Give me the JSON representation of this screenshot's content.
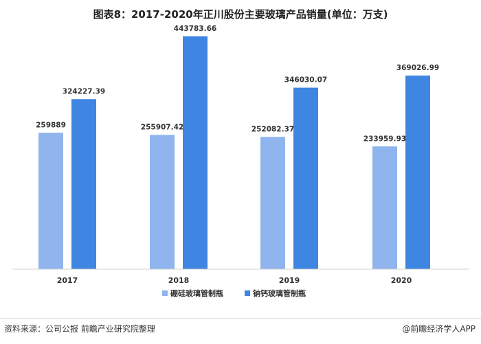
{
  "chart_data": {
    "type": "bar",
    "title": "图表8：2017-2020年正川股份主要玻璃产品销量(单位：万支)",
    "categories": [
      "2017",
      "2018",
      "2019",
      "2020"
    ],
    "series": [
      {
        "name": "硼硅玻璃管制瓶",
        "values": [
          259889,
          255907.42,
          252082.37,
          233959.93
        ],
        "labels": [
          "259889",
          "255907.42",
          "252082.37",
          "233959.93"
        ],
        "color": "#8fb4ee"
      },
      {
        "name": "钠钙玻璃管制瓶",
        "values": [
          324227.39,
          443783.66,
          346030.07,
          369026.99
        ],
        "labels": [
          "324227.39",
          "443783.66",
          "346030.07",
          "369026.99"
        ],
        "color": "#3f86e3"
      }
    ],
    "ylim": [
      0,
      500000
    ],
    "grid": false,
    "legend_position": "bottom"
  },
  "footer": {
    "source": "资料来源：公司公报 前瞻产业研究院整理",
    "app": "@前瞻经济学人APP"
  }
}
